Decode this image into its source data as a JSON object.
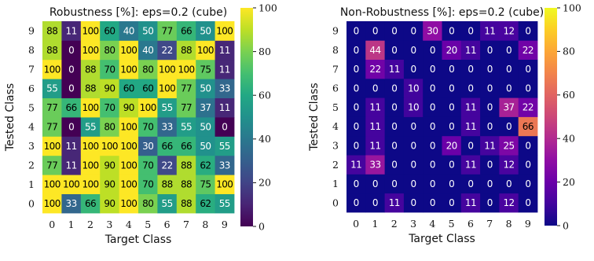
{
  "chart_data": [
    {
      "type": "heatmap",
      "title": "Robustness [%]: eps=0.2 (cube)",
      "xlabel": "Target Class",
      "ylabel": "Tested Class",
      "x_ticks": [
        "0",
        "1",
        "2",
        "3",
        "4",
        "5",
        "6",
        "7",
        "8",
        "9"
      ],
      "y_ticks": [
        "0",
        "1",
        "2",
        "3",
        "4",
        "5",
        "6",
        "7",
        "8",
        "9"
      ],
      "colormap": "viridis",
      "vmin": 0,
      "vmax": 100,
      "colorbar_ticks": [
        "0",
        "20",
        "40",
        "60",
        "80",
        "100"
      ],
      "values": [
        [
          100,
          33,
          66,
          90,
          100,
          80,
          55,
          88,
          62,
          55
        ],
        [
          100,
          100,
          100,
          90,
          100,
          70,
          88,
          88,
          75,
          100
        ],
        [
          77,
          11,
          100,
          90,
          100,
          70,
          22,
          88,
          62,
          33
        ],
        [
          100,
          11,
          100,
          100,
          100,
          30,
          66,
          66,
          50,
          55
        ],
        [
          77,
          0,
          55,
          80,
          100,
          70,
          33,
          55,
          50,
          0
        ],
        [
          77,
          66,
          100,
          70,
          90,
          100,
          55,
          77,
          37,
          11
        ],
        [
          55,
          0,
          88,
          90,
          60,
          60,
          100,
          77,
          50,
          33
        ],
        [
          100,
          0,
          88,
          70,
          100,
          80,
          100,
          100,
          75,
          11
        ],
        [
          88,
          0,
          100,
          80,
          100,
          40,
          22,
          88,
          100,
          11
        ],
        [
          88,
          11,
          100,
          60,
          40,
          50,
          77,
          66,
          50,
          100
        ]
      ]
    },
    {
      "type": "heatmap",
      "title": "Non-Robustness [%]: eps=0.2 (cube)",
      "xlabel": "Target Class",
      "ylabel": "Tested Class",
      "x_ticks": [
        "0",
        "1",
        "2",
        "3",
        "4",
        "5",
        "6",
        "7",
        "8",
        "9"
      ],
      "y_ticks": [
        "0",
        "1",
        "2",
        "3",
        "4",
        "5",
        "6",
        "7",
        "8",
        "9"
      ],
      "colormap": "plasma",
      "vmin": 0,
      "vmax": 100,
      "colorbar_ticks": [
        "0",
        "20",
        "40",
        "60",
        "80",
        "100"
      ],
      "values": [
        [
          0,
          0,
          11,
          0,
          0,
          0,
          11,
          0,
          12,
          0
        ],
        [
          0,
          0,
          0,
          0,
          0,
          0,
          0,
          0,
          0,
          0
        ],
        [
          11,
          33,
          0,
          0,
          0,
          0,
          11,
          0,
          12,
          0
        ],
        [
          0,
          11,
          0,
          0,
          0,
          20,
          0,
          11,
          25,
          0
        ],
        [
          0,
          11,
          0,
          0,
          0,
          0,
          11,
          0,
          0,
          66
        ],
        [
          0,
          11,
          0,
          10,
          0,
          0,
          11,
          0,
          37,
          22
        ],
        [
          0,
          0,
          0,
          10,
          0,
          0,
          0,
          0,
          0,
          0
        ],
        [
          0,
          22,
          11,
          0,
          0,
          0,
          0,
          0,
          0,
          0
        ],
        [
          0,
          44,
          0,
          0,
          0,
          20,
          11,
          0,
          0,
          22
        ],
        [
          0,
          0,
          0,
          0,
          30,
          0,
          0,
          11,
          12,
          0
        ]
      ]
    }
  ]
}
